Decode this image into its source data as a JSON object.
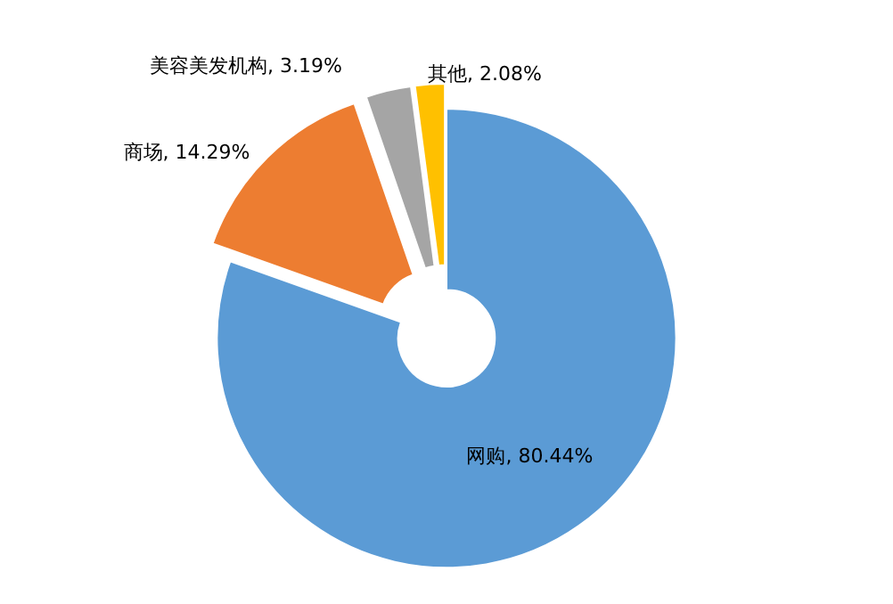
{
  "chart_data": {
    "type": "donut",
    "categories": [
      "网购",
      "商场",
      "美容美发机构",
      "其他"
    ],
    "values": [
      80.44,
      14.29,
      3.19,
      2.08
    ],
    "colors": [
      "#5b9bd5",
      "#ed7d31",
      "#a5a5a5",
      "#ffc000"
    ],
    "value_labels": [
      "80.44%",
      "14.29%",
      "3.19%",
      "2.08%"
    ],
    "legend": false
  }
}
